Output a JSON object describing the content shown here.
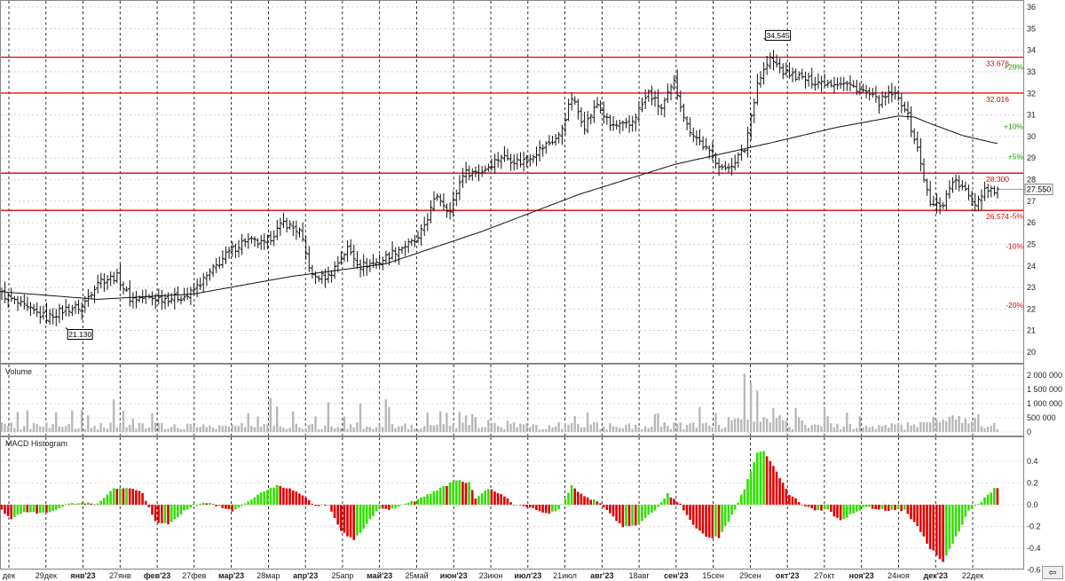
{
  "colors": {
    "price_bar": "#111111",
    "moving_average": "#111111",
    "level_line": "#dd0000",
    "level_label": "#dd0000",
    "volume_bar": "#b8b8b8",
    "macd_positive": "#33dd00",
    "macd_negative": "#dd0000",
    "pct_positive": "#1a9900",
    "pct_negative": "#dd0000",
    "grid": "#b8b8b8",
    "frame": "#888888"
  },
  "scroll_button": {
    "icon": "arrow-left-icon",
    "glyph": "⇦"
  },
  "chart_data": [
    {
      "type": "ohlc",
      "panel": "price",
      "title": "",
      "y_ticks": [
        20,
        21,
        22,
        23,
        24,
        25,
        26,
        27,
        28,
        29,
        30,
        31,
        32,
        33,
        34,
        35,
        36
      ],
      "ylim": [
        19.6,
        36.2
      ],
      "x_ticks": [
        "дек",
        "29дек",
        "янв'23",
        "27янв",
        "фев'23",
        "27фев",
        "мар'23",
        "28мар",
        "апр'23",
        "25апр",
        "май'23",
        "25май",
        "июн'23",
        "23июн",
        "июл'23",
        "21июл",
        "авг'23",
        "18авг",
        "сен'23",
        "15сен",
        "29сен",
        "окт'23",
        "27окт",
        "ноя'23",
        "24ноя",
        "дек'23",
        "22дек"
      ],
      "bold_x_ticks": [
        "янв'23",
        "фев'23",
        "мар'23",
        "апр'23",
        "май'23",
        "июн'23",
        "июл'23",
        "авг'23",
        "сен'23",
        "окт'23",
        "ноя'23",
        "дек'23"
      ],
      "close_anchors": [
        [
          0,
          22.7
        ],
        [
          8,
          22.0
        ],
        [
          14,
          21.6
        ],
        [
          20,
          22.0
        ],
        [
          25,
          22.1
        ],
        [
          30,
          23.3
        ],
        [
          36,
          23.5
        ],
        [
          40,
          22.5
        ],
        [
          46,
          22.5
        ],
        [
          52,
          22.5
        ],
        [
          58,
          22.6
        ],
        [
          64,
          23.5
        ],
        [
          70,
          24.5
        ],
        [
          76,
          25.2
        ],
        [
          82,
          25.0
        ],
        [
          88,
          26.0
        ],
        [
          93,
          25.6
        ],
        [
          97,
          23.5
        ],
        [
          102,
          23.5
        ],
        [
          108,
          24.8
        ],
        [
          112,
          24.0
        ],
        [
          118,
          24.2
        ],
        [
          124,
          24.8
        ],
        [
          130,
          25.2
        ],
        [
          136,
          27.3
        ],
        [
          140,
          26.5
        ],
        [
          144,
          28.3
        ],
        [
          150,
          28.4
        ],
        [
          156,
          29.1
        ],
        [
          162,
          28.8
        ],
        [
          168,
          29.4
        ],
        [
          174,
          30.0
        ],
        [
          178,
          31.8
        ],
        [
          182,
          30.5
        ],
        [
          186,
          31.5
        ],
        [
          190,
          30.5
        ],
        [
          196,
          30.5
        ],
        [
          202,
          32.0
        ],
        [
          206,
          31.3
        ],
        [
          210,
          32.5
        ],
        [
          214,
          30.5
        ],
        [
          220,
          29.4
        ],
        [
          226,
          28.4
        ],
        [
          232,
          29.4
        ],
        [
          236,
          32.5
        ],
        [
          240,
          33.6
        ],
        [
          244,
          33.0
        ],
        [
          248,
          32.8
        ],
        [
          252,
          32.6
        ],
        [
          258,
          32.5
        ],
        [
          262,
          32.5
        ],
        [
          268,
          32.2
        ],
        [
          274,
          31.6
        ],
        [
          278,
          32.0
        ],
        [
          282,
          31.4
        ],
        [
          286,
          29.4
        ],
        [
          290,
          26.8
        ],
        [
          294,
          26.9
        ],
        [
          297,
          28.0
        ],
        [
          300,
          27.6
        ],
        [
          304,
          26.9
        ],
        [
          307,
          27.6
        ],
        [
          310,
          27.55
        ]
      ],
      "ma_anchors": [
        [
          0,
          22.8
        ],
        [
          30,
          22.45
        ],
        [
          60,
          22.7
        ],
        [
          90,
          23.5
        ],
        [
          120,
          24.1
        ],
        [
          150,
          25.6
        ],
        [
          180,
          27.3
        ],
        [
          210,
          28.7
        ],
        [
          240,
          29.7
        ],
        [
          260,
          30.4
        ],
        [
          280,
          30.95
        ],
        [
          285,
          30.9
        ],
        [
          290,
          30.6
        ],
        [
          300,
          30.05
        ],
        [
          310,
          29.7
        ]
      ],
      "levels": [
        {
          "value": 33.676,
          "label": "33.676"
        },
        {
          "value": 32.016,
          "label": "32.016"
        },
        {
          "value": 28.3,
          "label": "28.300"
        },
        {
          "value": 26.574,
          "label": "26.574"
        }
      ],
      "last_price": {
        "value": 27.55,
        "label": "27.550"
      },
      "extremes": [
        {
          "x_index": 20,
          "value": 21.13,
          "label": "21.130"
        },
        {
          "x_index": 238,
          "value": 34.545,
          "label": "34.545"
        }
      ],
      "pct_labels": [
        {
          "label": "+20%",
          "value": 33.1
        },
        {
          "label": "+10%",
          "value": 30.35
        },
        {
          "label": "+5%",
          "value": 28.95
        },
        {
          "label": "-5%",
          "value": 26.2
        },
        {
          "label": "-10%",
          "value": 24.8
        },
        {
          "label": "-20%",
          "value": 22.05
        }
      ]
    },
    {
      "type": "bar",
      "panel": "volume",
      "title": "Volume",
      "y_ticks": [
        0,
        500000,
        1000000,
        1500000,
        2000000
      ],
      "y_tick_labels": [
        "0",
        "500 000",
        "1 000 000",
        "1 500 000",
        "2 000 000"
      ],
      "ylim": [
        0,
        2300000
      ],
      "spikes": [
        [
          35,
          1150000
        ],
        [
          84,
          1200000
        ],
        [
          86,
          900000
        ],
        [
          102,
          1050000
        ],
        [
          112,
          1000000
        ],
        [
          120,
          1150000
        ],
        [
          232,
          2050000
        ],
        [
          234,
          1750000
        ],
        [
          236,
          1450000
        ]
      ]
    },
    {
      "type": "bar",
      "panel": "macd",
      "title": "MACD Histogram",
      "y_ticks": [
        -0.6,
        -0.4,
        -0.2,
        0,
        0.2,
        0.4
      ],
      "y_tick_labels": [
        "-0.6",
        "-0.4",
        "-0.2",
        "0.0",
        "0.2",
        "0.4"
      ],
      "ylim": [
        -0.72,
        0.6
      ],
      "anchors": [
        [
          0,
          -0.05
        ],
        [
          3,
          -0.13
        ],
        [
          6,
          -0.08
        ],
        [
          10,
          -0.07
        ],
        [
          14,
          -0.08
        ],
        [
          20,
          0.0
        ],
        [
          26,
          0.02
        ],
        [
          30,
          0.01
        ],
        [
          35,
          0.15
        ],
        [
          40,
          0.15
        ],
        [
          44,
          0.11
        ],
        [
          48,
          -0.15
        ],
        [
          52,
          -0.19
        ],
        [
          56,
          -0.08
        ],
        [
          60,
          0.0
        ],
        [
          64,
          0.02
        ],
        [
          68,
          -0.02
        ],
        [
          72,
          -0.06
        ],
        [
          76,
          0.01
        ],
        [
          80,
          0.1
        ],
        [
          86,
          0.18
        ],
        [
          90,
          0.15
        ],
        [
          94,
          0.08
        ],
        [
          98,
          -0.01
        ],
        [
          102,
          0.0
        ],
        [
          106,
          -0.25
        ],
        [
          110,
          -0.32
        ],
        [
          114,
          -0.18
        ],
        [
          118,
          -0.03
        ],
        [
          122,
          -0.04
        ],
        [
          126,
          0.0
        ],
        [
          130,
          0.05
        ],
        [
          136,
          0.13
        ],
        [
          142,
          0.23
        ],
        [
          146,
          0.2
        ],
        [
          148,
          0.06
        ],
        [
          152,
          0.15
        ],
        [
          156,
          0.1
        ],
        [
          160,
          0.0
        ],
        [
          164,
          -0.02
        ],
        [
          170,
          -0.08
        ],
        [
          174,
          -0.05
        ],
        [
          178,
          0.17
        ],
        [
          182,
          0.08
        ],
        [
          186,
          0.03
        ],
        [
          188,
          -0.02
        ],
        [
          194,
          -0.2
        ],
        [
          198,
          -0.2
        ],
        [
          204,
          -0.05
        ],
        [
          208,
          0.1
        ],
        [
          212,
          0.0
        ],
        [
          216,
          -0.18
        ],
        [
          220,
          -0.3
        ],
        [
          224,
          -0.3
        ],
        [
          228,
          -0.1
        ],
        [
          232,
          0.15
        ],
        [
          236,
          0.48
        ],
        [
          238,
          0.5
        ],
        [
          242,
          0.3
        ],
        [
          246,
          0.1
        ],
        [
          250,
          0.0
        ],
        [
          254,
          -0.05
        ],
        [
          258,
          -0.05
        ],
        [
          262,
          -0.15
        ],
        [
          266,
          -0.07
        ],
        [
          270,
          -0.02
        ],
        [
          276,
          -0.05
        ],
        [
          282,
          -0.05
        ],
        [
          286,
          -0.2
        ],
        [
          290,
          -0.4
        ],
        [
          294,
          -0.52
        ],
        [
          298,
          -0.3
        ],
        [
          302,
          -0.05
        ],
        [
          306,
          0.03
        ],
        [
          310,
          0.15
        ]
      ]
    }
  ]
}
